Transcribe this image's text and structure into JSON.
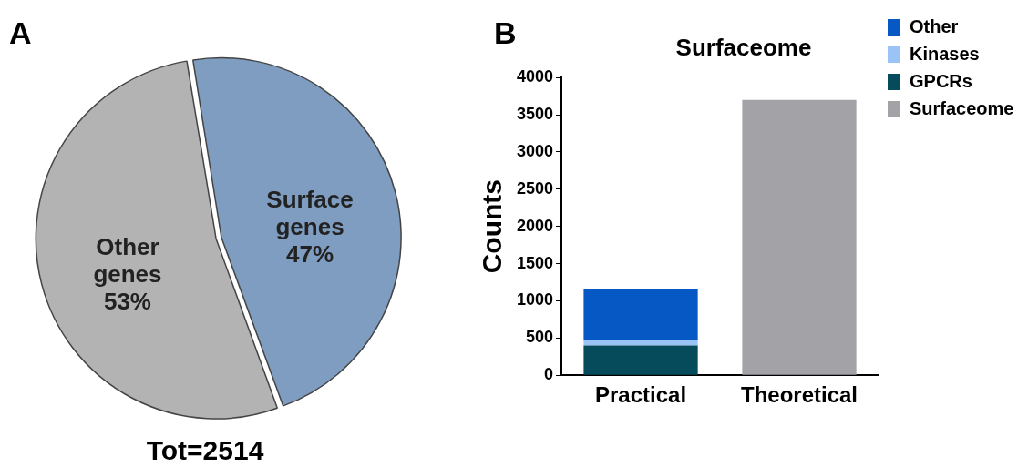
{
  "chart_data": [
    {
      "type": "pie",
      "categories": [
        "Other genes",
        "Surface genes"
      ],
      "values": [
        53,
        47
      ],
      "value_labels": [
        "53%",
        "47%"
      ],
      "colors": [
        "#b3b3b3",
        "#7f9dc0"
      ],
      "legend": false,
      "annotations": [
        "A",
        "Tot=2514"
      ]
    },
    {
      "type": "bar",
      "title": "Surfaceome",
      "ylabel": "Counts",
      "categories": [
        "Practical",
        "Theoretical"
      ],
      "stacked": true,
      "legend": "right",
      "grid": false,
      "ylim": [
        0,
        4000
      ],
      "yticks": [
        0,
        500,
        1000,
        1500,
        2000,
        2500,
        3000,
        3500,
        4000
      ],
      "series": [
        {
          "name": "GPCRs",
          "color": "#054b5c",
          "values": [
            400,
            null
          ]
        },
        {
          "name": "Kinases",
          "color": "#99c4f5",
          "values": [
            80,
            null
          ]
        },
        {
          "name": "Other",
          "color": "#0659c4",
          "values": [
            680,
            null
          ]
        },
        {
          "name": "Surfaceome",
          "color": "#a3a2a7",
          "values": [
            null,
            3700
          ]
        }
      ],
      "annotations": [
        "B"
      ]
    }
  ]
}
